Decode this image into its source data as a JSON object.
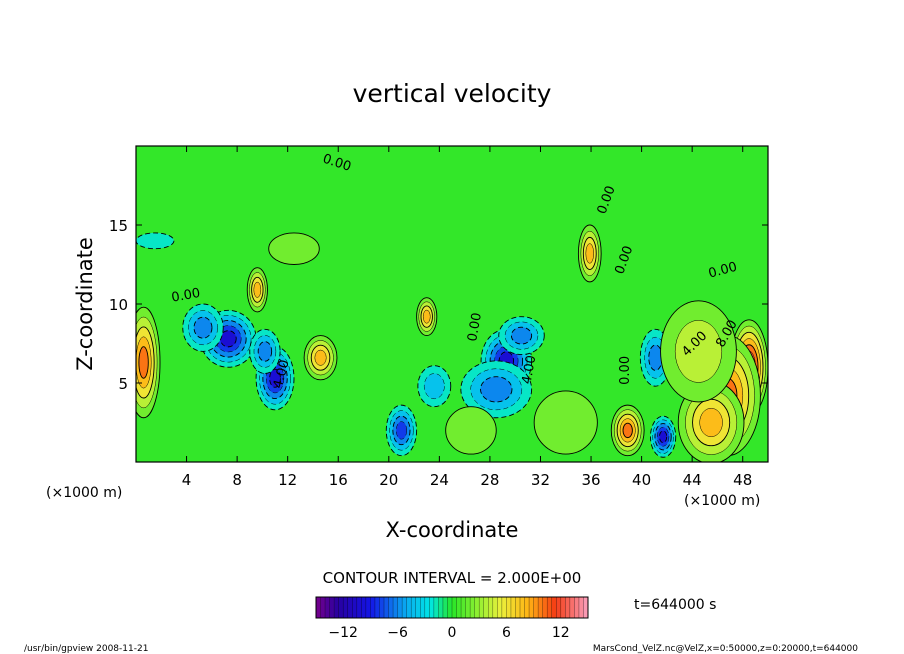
{
  "chart_data": {
    "type": "heatmap",
    "title": "vertical velocity",
    "xlabel": "X-coordinate",
    "ylabel": "Z-coordinate",
    "x_unit": "(×1000 m)",
    "x_unit_right": "(×1000 m)",
    "xlim": [
      0,
      50
    ],
    "ylim": [
      0,
      20
    ],
    "x_ticks": [
      4,
      8,
      12,
      16,
      20,
      24,
      28,
      32,
      36,
      40,
      44,
      48
    ],
    "y_ticks": [
      5,
      10,
      15
    ],
    "contour_interval_text": "CONTOUR INTERVAL = 2.000E+00",
    "contour_interval": 2.0,
    "colorbar": {
      "min": -15,
      "max": 15,
      "ticks": [
        -12,
        -6,
        0,
        6,
        12
      ],
      "tick_labels": [
        "−12",
        "−6",
        "0",
        "6",
        "12"
      ]
    },
    "contour_labels": [
      {
        "text": "0.00",
        "x": 15.8,
        "z": 18.7,
        "angle": 18
      },
      {
        "text": "0.00",
        "x": 4.0,
        "z": 10.3,
        "angle": -10
      },
      {
        "text": "0.00",
        "x": 37.5,
        "z": 16.5,
        "angle": -70
      },
      {
        "text": "0.00",
        "x": 38.9,
        "z": 12.7,
        "angle": -70
      },
      {
        "text": "0.00",
        "x": 46.5,
        "z": 11.9,
        "angle": -15
      },
      {
        "text": "4.00",
        "x": 11.8,
        "z": 5.5,
        "angle": -75
      },
      {
        "text": "0.00",
        "x": 27.1,
        "z": 8.5,
        "angle": -80
      },
      {
        "text": "4.00",
        "x": 31.4,
        "z": 5.8,
        "angle": -80
      },
      {
        "text": "0.00",
        "x": 39.0,
        "z": 5.8,
        "angle": -90
      },
      {
        "text": "4.00",
        "x": 44.4,
        "z": 7.3,
        "angle": -45
      },
      {
        "text": "8.00",
        "x": 47.0,
        "z": 8.0,
        "angle": -60
      }
    ],
    "blobs": [
      {
        "x": 7.3,
        "z": 7.8,
        "rx": 2.2,
        "rz": 1.8,
        "v": -11
      },
      {
        "x": 5.3,
        "z": 8.5,
        "rx": 1.6,
        "rz": 1.5,
        "v": -7
      },
      {
        "x": 11.0,
        "z": 5.3,
        "rx": 1.5,
        "rz": 2.0,
        "v": -11
      },
      {
        "x": 10.2,
        "z": 7.0,
        "rx": 1.2,
        "rz": 1.4,
        "v": -6
      },
      {
        "x": 21.0,
        "z": 2.0,
        "rx": 1.2,
        "rz": 1.6,
        "v": -8
      },
      {
        "x": 29.3,
        "z": 6.4,
        "rx": 2.0,
        "rz": 2.0,
        "v": -11
      },
      {
        "x": 28.5,
        "z": 4.6,
        "rx": 2.8,
        "rz": 1.8,
        "v": -6
      },
      {
        "x": 30.5,
        "z": 8.0,
        "rx": 1.8,
        "rz": 1.2,
        "v": -6
      },
      {
        "x": 41.7,
        "z": 1.6,
        "rx": 1.0,
        "rz": 1.3,
        "v": -10
      },
      {
        "x": 41.1,
        "z": 6.6,
        "rx": 1.2,
        "rz": 1.8,
        "v": -6
      },
      {
        "x": 23.6,
        "z": 4.8,
        "rx": 1.3,
        "rz": 1.3,
        "v": -4
      },
      {
        "x": 1.5,
        "z": 14.0,
        "rx": 1.5,
        "rz": 0.5,
        "v": -3
      },
      {
        "x": 9.6,
        "z": 10.9,
        "rx": 0.8,
        "rz": 1.4,
        "v": 9
      },
      {
        "x": 14.6,
        "z": 6.6,
        "rx": 1.3,
        "rz": 1.4,
        "v": 8
      },
      {
        "x": 23.0,
        "z": 9.2,
        "rx": 0.8,
        "rz": 1.2,
        "v": 8
      },
      {
        "x": 0.6,
        "z": 6.3,
        "rx": 1.3,
        "rz": 3.5,
        "v": 11
      },
      {
        "x": 38.9,
        "z": 2.0,
        "rx": 1.3,
        "rz": 1.6,
        "v": 10
      },
      {
        "x": 35.9,
        "z": 13.2,
        "rx": 0.9,
        "rz": 1.8,
        "v": 9
      },
      {
        "x": 48.5,
        "z": 6.0,
        "rx": 1.5,
        "rz": 3.0,
        "v": 14
      },
      {
        "x": 46.8,
        "z": 4.2,
        "rx": 2.6,
        "rz": 3.8,
        "v": 11
      },
      {
        "x": 45.5,
        "z": 2.5,
        "rx": 2.6,
        "rz": 2.6,
        "v": 8
      },
      {
        "x": 44.5,
        "z": 7.0,
        "rx": 3.0,
        "rz": 3.2,
        "v": 5
      },
      {
        "x": 12.5,
        "z": 13.5,
        "rx": 2.0,
        "rz": 1.0,
        "v": 3
      },
      {
        "x": 34.0,
        "z": 2.5,
        "rx": 2.5,
        "rz": 2.0,
        "v": 3
      },
      {
        "x": 26.5,
        "z": 2.0,
        "rx": 2.0,
        "rz": 1.5,
        "v": 2
      }
    ]
  },
  "time_label": "t=644000  s",
  "footer": {
    "left": "/usr/bin/gpview  2008-11-21",
    "right": "MarsCond_VelZ.nc@VelZ,x=0:50000,z=0:20000,t=644000"
  }
}
